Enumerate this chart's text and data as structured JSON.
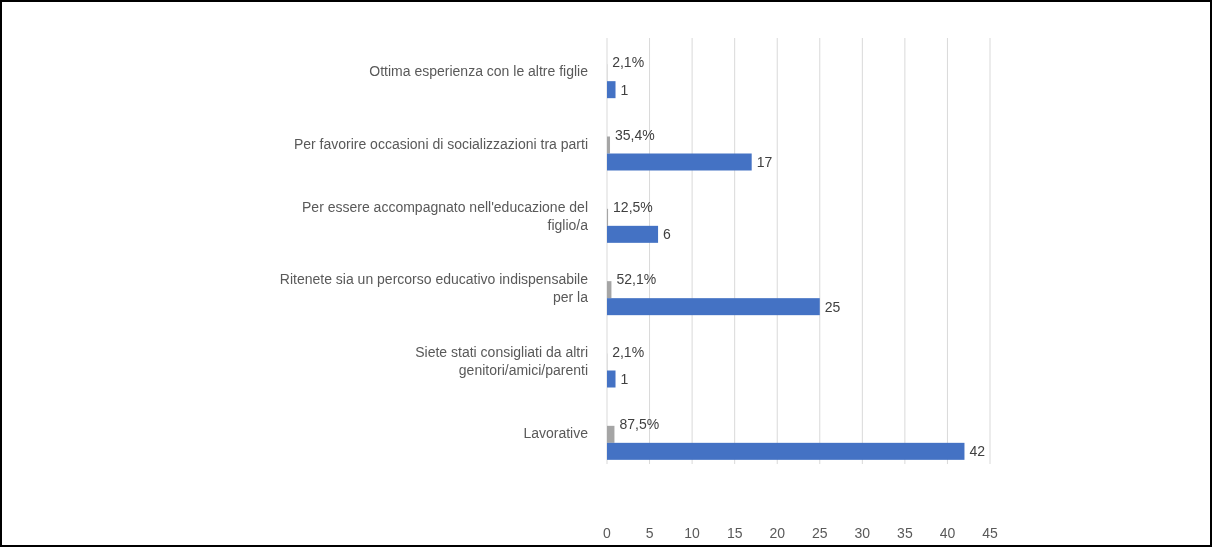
{
  "chart_data": {
    "type": "bar",
    "orientation": "horizontal",
    "categories": [
      "Ottima esperienza con le altre figlie",
      "Per favorire occasioni di socializzazioni tra parti",
      "Per essere accompagnato nell'educazione del figlio/a",
      "Ritenete sia un percorso educativo indispensabile per la",
      "Siete stati consigliati da altri genitori/amici/parenti",
      "Lavorative"
    ],
    "series": [
      {
        "color": "#a5a5a5",
        "values": [
          0.021,
          0.354,
          0.125,
          0.521,
          0.021,
          0.875
        ],
        "value_labels": [
          "2,1%",
          "35,4%",
          "12,5%",
          "52,1%",
          "2,1%",
          "87,5%"
        ]
      },
      {
        "color": "#4472c4",
        "values": [
          1,
          17,
          6,
          25,
          1,
          42
        ],
        "value_labels": [
          "1",
          "17",
          "6",
          "25",
          "1",
          "42"
        ]
      }
    ],
    "xlim": [
      0,
      45
    ],
    "xticks": [
      0,
      5,
      10,
      15,
      20,
      25,
      30,
      35,
      40,
      45
    ],
    "grid": "x"
  }
}
